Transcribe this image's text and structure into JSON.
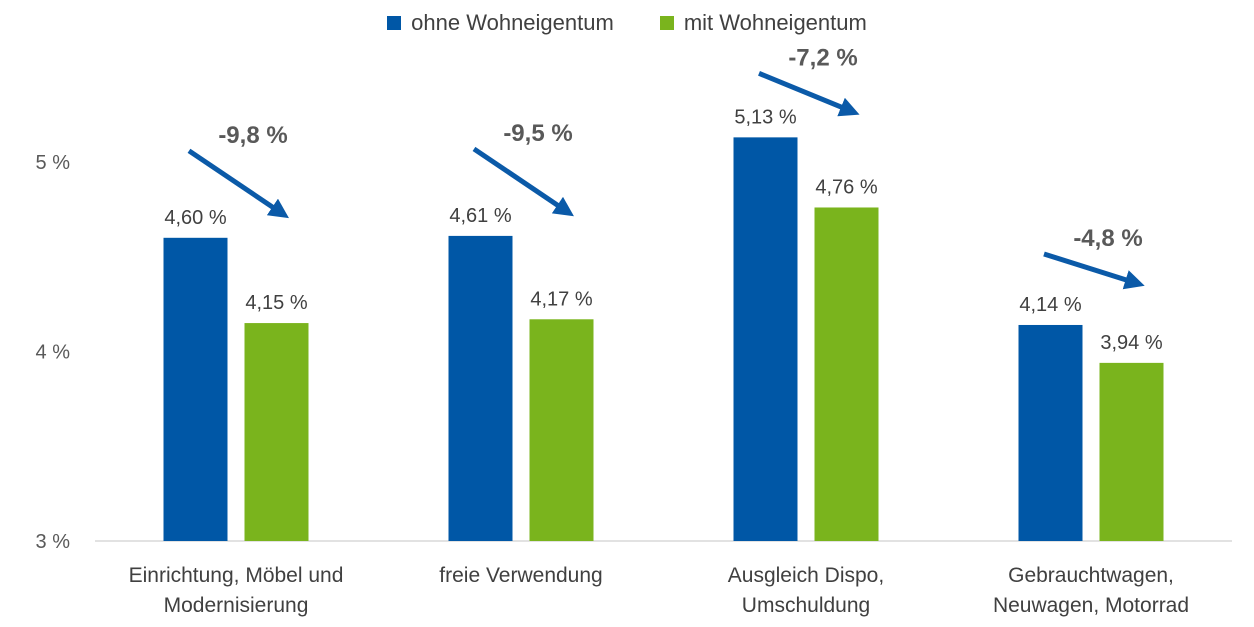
{
  "chart_data": {
    "type": "bar",
    "title": "",
    "xlabel": "",
    "ylabel": "",
    "ylim": [
      3,
      5.6
    ],
    "yticks": [
      {
        "value": 3,
        "label": "3 %"
      },
      {
        "value": 4,
        "label": "4 %"
      },
      {
        "value": 5,
        "label": "5 %"
      }
    ],
    "categories": [
      [
        "Einrichtung, Möbel und",
        "Modernisierung"
      ],
      [
        "freie Verwendung"
      ],
      [
        "Ausgleich Dispo,",
        "Umschuldung"
      ],
      [
        "Gebrauchtwagen,",
        "Neuwagen, Motorrad"
      ]
    ],
    "series": [
      {
        "name": "ohne Wohneigentum",
        "color": "#0057A6",
        "values": [
          4.6,
          4.61,
          5.13,
          4.14
        ],
        "labels": [
          "4,60 %",
          "4,61 %",
          "5,13 %",
          "4,14 %"
        ]
      },
      {
        "name": "mit Wohneigentum",
        "color": "#7AB41D",
        "values": [
          4.15,
          4.17,
          4.76,
          3.94
        ],
        "labels": [
          "4,15 %",
          "4,17 %",
          "4,76 %",
          "3,94 %"
        ]
      }
    ],
    "annotations": [
      "-9,8 %",
      "-9,5 %",
      "-7,2 %",
      "-4,8 %"
    ],
    "arrow_color": "#0B5AA8",
    "grid": false,
    "legend_position": "top-center"
  }
}
